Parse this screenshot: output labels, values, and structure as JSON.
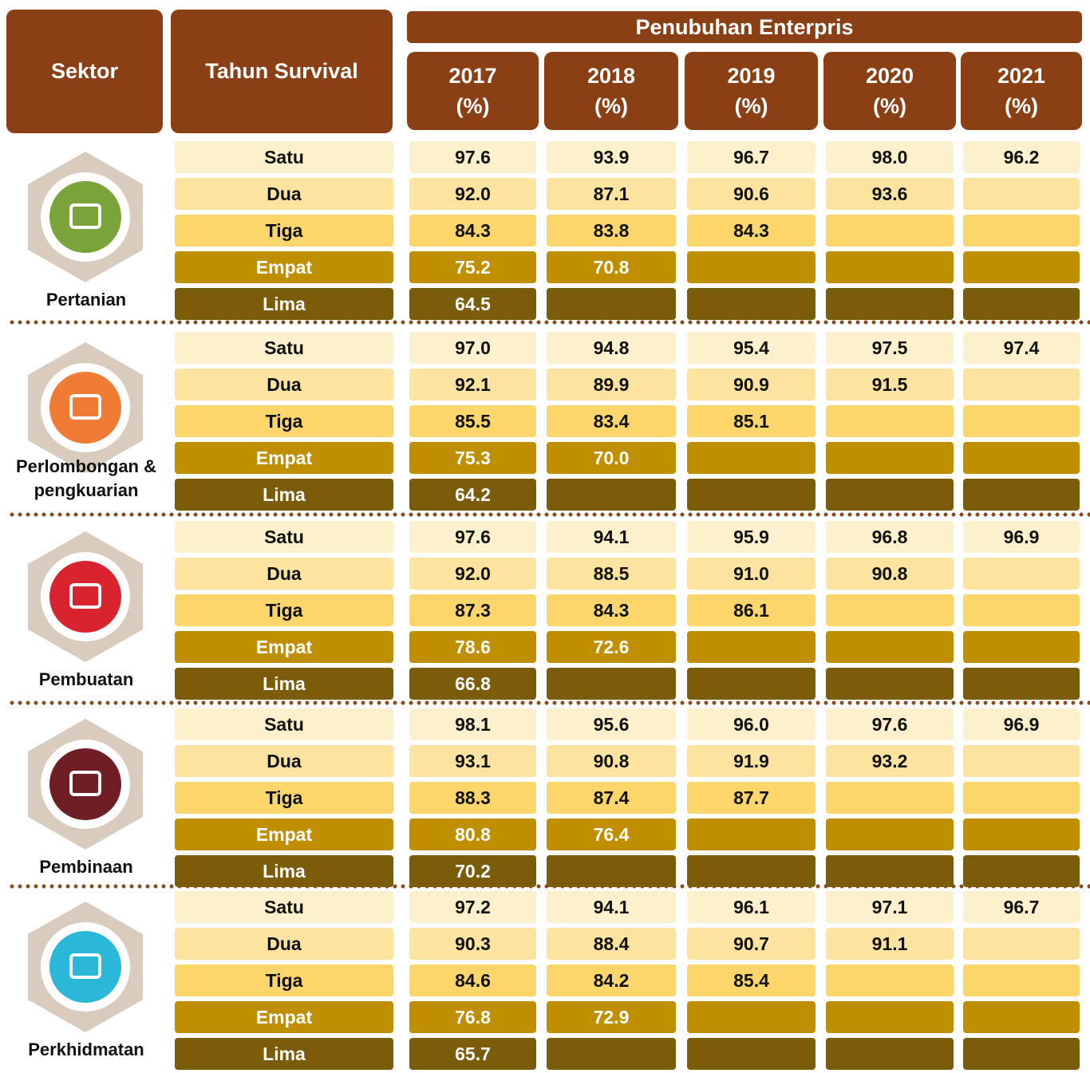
{
  "header": {
    "sector": "Sektor",
    "survival": "Tahun Survival",
    "group": "Penubuhan Enterpris",
    "years": [
      "2017",
      "2018",
      "2019",
      "2020",
      "2021"
    ],
    "unit": "(%)"
  },
  "sectors": [
    {
      "name": "Pertanian",
      "rows": [
        {
          "label": "Satu",
          "values": [
            "97.6",
            "93.9",
            "96.7",
            "98.0",
            "96.2"
          ]
        },
        {
          "label": "Dua",
          "values": [
            "92.0",
            "87.1",
            "90.6",
            "93.6"
          ]
        },
        {
          "label": "Tiga",
          "values": [
            "84.3",
            "83.8",
            "84.3"
          ]
        },
        {
          "label": "Empat",
          "values": [
            "75.2",
            "70.8"
          ]
        },
        {
          "label": "Lima",
          "values": [
            "64.5"
          ]
        }
      ]
    },
    {
      "name": "Perlombongan & pengkuarian",
      "rows": [
        {
          "label": "Satu",
          "values": [
            "97.0",
            "94.8",
            "95.4",
            "97.5",
            "97.4"
          ]
        },
        {
          "label": "Dua",
          "values": [
            "92.1",
            "89.9",
            "90.9",
            "91.5"
          ]
        },
        {
          "label": "Tiga",
          "values": [
            "85.5",
            "83.4",
            "85.1"
          ]
        },
        {
          "label": "Empat",
          "values": [
            "75.3",
            "70.0"
          ]
        },
        {
          "label": "Lima",
          "values": [
            "64.2"
          ]
        }
      ]
    },
    {
      "name": "Pembuatan",
      "rows": [
        {
          "label": "Satu",
          "values": [
            "97.6",
            "94.1",
            "95.9",
            "96.8",
            "96.9"
          ]
        },
        {
          "label": "Dua",
          "values": [
            "92.0",
            "88.5",
            "91.0",
            "90.8"
          ]
        },
        {
          "label": "Tiga",
          "values": [
            "87.3",
            "84.3",
            "86.1"
          ]
        },
        {
          "label": "Empat",
          "values": [
            "78.6",
            "72.6"
          ]
        },
        {
          "label": "Lima",
          "values": [
            "66.8"
          ]
        }
      ]
    },
    {
      "name": "Pembinaan",
      "rows": [
        {
          "label": "Satu",
          "values": [
            "98.1",
            "95.6",
            "96.0",
            "97.6",
            "96.9"
          ]
        },
        {
          "label": "Dua",
          "values": [
            "93.1",
            "90.8",
            "91.9",
            "93.2"
          ]
        },
        {
          "label": "Tiga",
          "values": [
            "88.3",
            "87.4",
            "87.7"
          ]
        },
        {
          "label": "Empat",
          "values": [
            "80.8",
            "76.4"
          ]
        },
        {
          "label": "Lima",
          "values": [
            "70.2"
          ]
        }
      ]
    },
    {
      "name": "Perkhidmatan",
      "rows": [
        {
          "label": "Satu",
          "values": [
            "97.2",
            "94.1",
            "96.1",
            "97.1",
            "96.7"
          ]
        },
        {
          "label": "Dua",
          "values": [
            "90.3",
            "88.4",
            "90.7",
            "91.1"
          ]
        },
        {
          "label": "Tiga",
          "values": [
            "84.6",
            "84.2",
            "85.4"
          ]
        },
        {
          "label": "Empat",
          "values": [
            "76.8",
            "72.9"
          ]
        },
        {
          "label": "Lima",
          "values": [
            "65.7"
          ]
        }
      ]
    }
  ]
}
